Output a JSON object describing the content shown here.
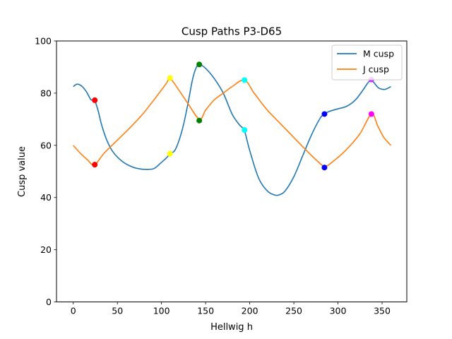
{
  "chart_data": {
    "type": "line",
    "title": "Cusp Paths P3-D65",
    "xlabel": "Hellwig h",
    "ylabel": "Cusp value",
    "xlim": [
      -19,
      378
    ],
    "ylim": [
      0,
      100
    ],
    "xticks": [
      0,
      50,
      100,
      150,
      200,
      250,
      300,
      350
    ],
    "yticks": [
      0,
      20,
      40,
      60,
      80,
      100
    ],
    "grid": false,
    "legend_position": "top-right",
    "series": [
      {
        "name": "M cusp",
        "color": "#1f77b4",
        "x": [
          0,
          3,
          6,
          10,
          15,
          20,
          24,
          28,
          32,
          38,
          45,
          55,
          65,
          75,
          85,
          92,
          100,
          105,
          110,
          115,
          120,
          125,
          130,
          135,
          139,
          143,
          150,
          160,
          170,
          180,
          188,
          194,
          200,
          210,
          220,
          228,
          233,
          240,
          250,
          260,
          270,
          280,
          285,
          290,
          300,
          310,
          320,
          330,
          334,
          338,
          342,
          346,
          350,
          354,
          360
        ],
        "y": [
          82.5,
          83.3,
          83.4,
          82.6,
          80.5,
          77.5,
          77.3,
          73.5,
          68,
          62,
          57.5,
          54,
          52,
          51,
          50.8,
          51.2,
          53.5,
          55,
          56.8,
          58,
          62,
          68,
          76,
          85,
          89.5,
          91,
          89.5,
          85.5,
          80,
          72,
          68,
          65.5,
          58,
          47.5,
          42.5,
          41,
          41,
          42.5,
          48,
          56,
          64,
          70.5,
          72,
          73,
          74,
          75,
          77.5,
          82,
          84,
          85,
          83.5,
          82,
          81.5,
          81.5,
          82.5
        ]
      },
      {
        "name": "J cusp",
        "color": "#ff7f0e",
        "x": [
          0,
          8,
          16,
          24,
          35,
          50,
          65,
          80,
          95,
          105,
          110,
          120,
          130,
          143,
          150,
          160,
          170,
          180,
          194,
          205,
          220,
          240,
          260,
          275,
          285,
          295,
          310,
          325,
          338,
          345,
          352,
          360
        ],
        "y": [
          60,
          57,
          54.5,
          52.5,
          57,
          62,
          67,
          72.5,
          79,
          83.5,
          85.5,
          81,
          76,
          70,
          73.5,
          77.5,
          80,
          82.5,
          85,
          80,
          73.5,
          66.5,
          59.5,
          54.5,
          52,
          54,
          58.5,
          64.5,
          72,
          67.5,
          63,
          60
        ]
      }
    ],
    "points": [
      {
        "x": 24.4,
        "y": 77.3,
        "color": "#ff0000"
      },
      {
        "x": 24.4,
        "y": 52.6,
        "color": "#ff0000"
      },
      {
        "x": 109.6,
        "y": 56.8,
        "color": "#ffff00"
      },
      {
        "x": 109.6,
        "y": 85.8,
        "color": "#ffff00"
      },
      {
        "x": 142.8,
        "y": 91.0,
        "color": "#008000"
      },
      {
        "x": 142.8,
        "y": 69.5,
        "color": "#008000"
      },
      {
        "x": 194.1,
        "y": 65.9,
        "color": "#00ffff"
      },
      {
        "x": 194.1,
        "y": 85.0,
        "color": "#00ffff"
      },
      {
        "x": 284.7,
        "y": 72.0,
        "color": "#0000ff"
      },
      {
        "x": 284.7,
        "y": 51.5,
        "color": "#0000ff"
      },
      {
        "x": 337.9,
        "y": 85.2,
        "color": "#cc33ff"
      },
      {
        "x": 337.9,
        "y": 72.0,
        "color": "#ff00ff"
      }
    ]
  }
}
